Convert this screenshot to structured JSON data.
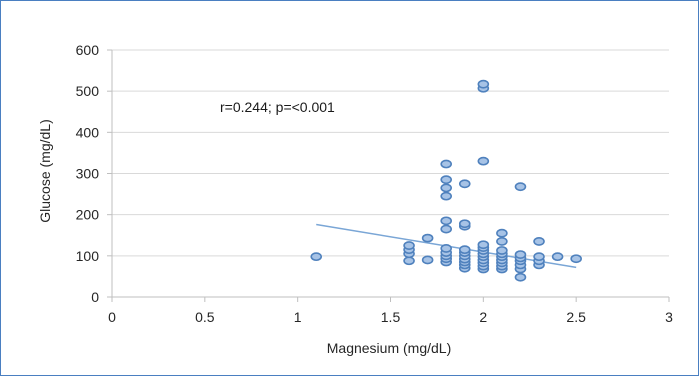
{
  "chart_data": {
    "type": "scatter",
    "title": "",
    "xlabel": "Magnesium (mg/dL)",
    "ylabel": "Glucose (mg/dL)",
    "xlim": [
      0,
      3
    ],
    "ylim": [
      0,
      600
    ],
    "x_ticks": [
      "0",
      "0.5",
      "1",
      "1.5",
      "2",
      "2.5",
      "3"
    ],
    "y_ticks": [
      "0",
      "100",
      "200",
      "300",
      "400",
      "500",
      "600"
    ],
    "x_tick_values": [
      0,
      0.5,
      1,
      1.5,
      2,
      2.5,
      3
    ],
    "y_tick_values": [
      0,
      100,
      200,
      300,
      400,
      500,
      600
    ],
    "grid": "horizontal",
    "annotation": "r=0.244; p=<0.001",
    "series": [
      {
        "type": "scatter",
        "color": "#4f81bd",
        "points": [
          [
            1.1,
            98
          ],
          [
            1.6,
            88
          ],
          [
            1.6,
            105
          ],
          [
            1.6,
            115
          ],
          [
            1.6,
            125
          ],
          [
            1.7,
            90
          ],
          [
            1.7,
            143
          ],
          [
            1.8,
            85
          ],
          [
            1.8,
            93
          ],
          [
            1.8,
            100
          ],
          [
            1.8,
            108
          ],
          [
            1.8,
            118
          ],
          [
            1.8,
            165
          ],
          [
            1.8,
            185
          ],
          [
            1.8,
            245
          ],
          [
            1.8,
            265
          ],
          [
            1.8,
            285
          ],
          [
            1.8,
            323
          ],
          [
            1.9,
            70
          ],
          [
            1.9,
            78
          ],
          [
            1.9,
            85
          ],
          [
            1.9,
            92
          ],
          [
            1.9,
            100
          ],
          [
            1.9,
            108
          ],
          [
            1.9,
            115
          ],
          [
            1.9,
            172
          ],
          [
            1.9,
            178
          ],
          [
            1.9,
            275
          ],
          [
            2.0,
            68
          ],
          [
            2.0,
            75
          ],
          [
            2.0,
            83
          ],
          [
            2.0,
            90
          ],
          [
            2.0,
            98
          ],
          [
            2.0,
            105
          ],
          [
            2.0,
            113
          ],
          [
            2.0,
            120
          ],
          [
            2.0,
            127
          ],
          [
            2.0,
            330
          ],
          [
            2.0,
            507
          ],
          [
            2.0,
            517
          ],
          [
            2.1,
            68
          ],
          [
            2.1,
            75
          ],
          [
            2.1,
            83
          ],
          [
            2.1,
            90
          ],
          [
            2.1,
            98
          ],
          [
            2.1,
            105
          ],
          [
            2.1,
            113
          ],
          [
            2.1,
            135
          ],
          [
            2.1,
            155
          ],
          [
            2.2,
            48
          ],
          [
            2.2,
            68
          ],
          [
            2.2,
            78
          ],
          [
            2.2,
            88
          ],
          [
            2.2,
            95
          ],
          [
            2.2,
            103
          ],
          [
            2.2,
            268
          ],
          [
            2.3,
            78
          ],
          [
            2.3,
            88
          ],
          [
            2.3,
            98
          ],
          [
            2.3,
            135
          ],
          [
            2.4,
            98
          ],
          [
            2.5,
            93
          ]
        ]
      },
      {
        "type": "trendline",
        "color": "#7aa6d6",
        "from": [
          1.1,
          176
        ],
        "to": [
          2.5,
          72
        ]
      }
    ]
  }
}
